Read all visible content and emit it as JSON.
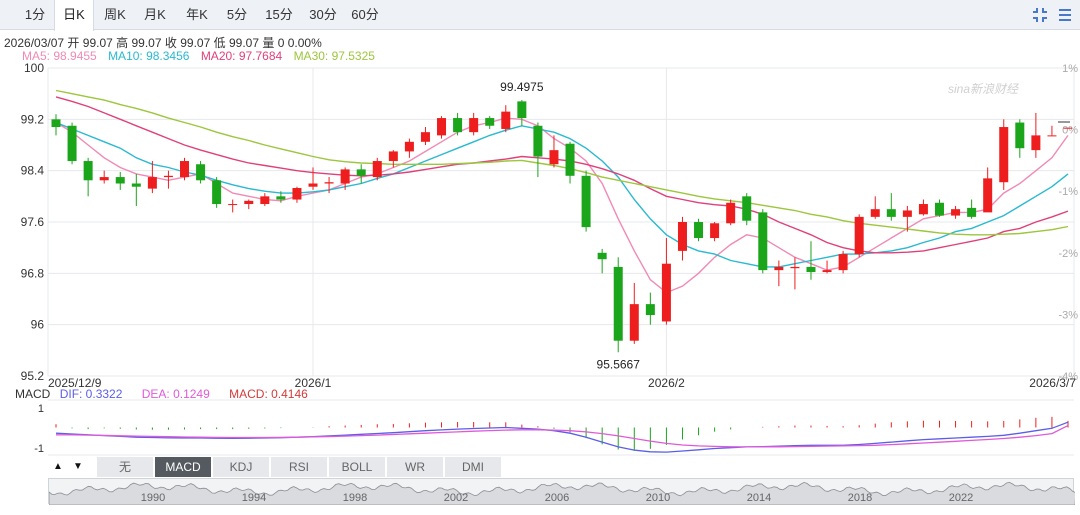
{
  "tabs": [
    {
      "label": "1分",
      "active": false
    },
    {
      "label": "日K",
      "active": true
    },
    {
      "label": "周K",
      "active": false
    },
    {
      "label": "月K",
      "active": false
    },
    {
      "label": "年K",
      "active": false
    },
    {
      "label": "5分",
      "active": false
    },
    {
      "label": "15分",
      "active": false
    },
    {
      "label": "30分",
      "active": false
    },
    {
      "label": "60分",
      "active": false
    }
  ],
  "toolbar_icons": [
    "expand-icon",
    "menu-icon"
  ],
  "info": {
    "date": "2026/03/07",
    "open_label": "开",
    "open": "99.07",
    "high_label": "高",
    "high": "99.07",
    "close_label": "收",
    "close": "99.07",
    "low_label": "低",
    "low": "99.07",
    "volume_label": "量",
    "volume": "0",
    "change": "0.00%"
  },
  "ma": {
    "ma5": {
      "label": "MA5: 98.9455",
      "color": "#f08ab4"
    },
    "ma10": {
      "label": "MA10: 98.3456",
      "color": "#29b9d0"
    },
    "ma20": {
      "label": "MA20: 97.7684",
      "color": "#e0407a"
    },
    "ma30": {
      "label": "MA30: 97.5325",
      "color": "#9cc63c"
    }
  },
  "watermark": "sina新浪财经",
  "macd": {
    "title": "MACD",
    "dif": {
      "label": "DIF: 0.3322",
      "color": "#5b5ee8"
    },
    "dea": {
      "label": "DEA: 0.1249",
      "color": "#e05ad8"
    },
    "macd": {
      "label": "MACD: 0.4146",
      "color": "#d23a3a"
    },
    "ticks": [
      "1",
      "-1"
    ]
  },
  "indicator_tabs": [
    {
      "label": "无",
      "active": false
    },
    {
      "label": "MACD",
      "active": true
    },
    {
      "label": "KDJ",
      "active": false
    },
    {
      "label": "RSI",
      "active": false
    },
    {
      "label": "BOLL",
      "active": false
    },
    {
      "label": "WR",
      "active": false
    },
    {
      "label": "DMI",
      "active": false
    }
  ],
  "navigator_years": [
    "1990",
    "1994",
    "1998",
    "2002",
    "2006",
    "2010",
    "2014",
    "2018",
    "2022"
  ],
  "colors": {
    "up": "#ee1e1e",
    "down": "#1aa51a",
    "grid": "#e6e8ec"
  },
  "chart_data": {
    "type": "candlestick",
    "y_ticks": [
      "100",
      "99.2",
      "98.4",
      "97.6",
      "96.8",
      "96",
      "95.2"
    ],
    "ylim": [
      95.2,
      100
    ],
    "pct_ticks": [
      "1%",
      "0%",
      "-1%",
      "-2%",
      "-3%",
      "-4%"
    ],
    "pct_range": [
      1,
      -4
    ],
    "x_labels": [
      {
        "label": "2025/12/9",
        "index": 0
      },
      {
        "label": "2026/1",
        "index": 16
      },
      {
        "label": "2026/2",
        "index": 38
      },
      {
        "label": "2026/3/7",
        "index": 63
      }
    ],
    "annotations": [
      {
        "label": "99.4975",
        "index": 29,
        "value": 99.4975
      },
      {
        "label": "95.5667",
        "index": 35,
        "value": 95.5667
      }
    ],
    "candles": [
      [
        99.2,
        99.08,
        99.28,
        98.95
      ],
      [
        99.1,
        98.55,
        99.15,
        98.5
      ],
      [
        98.55,
        98.25,
        98.6,
        98.0
      ],
      [
        98.25,
        98.3,
        98.4,
        98.2
      ],
      [
        98.3,
        98.2,
        98.38,
        98.1
      ],
      [
        98.2,
        98.15,
        98.35,
        97.85
      ],
      [
        98.12,
        98.3,
        98.55,
        98.05
      ],
      [
        98.3,
        98.32,
        98.4,
        98.12
      ],
      [
        98.3,
        98.55,
        98.6,
        98.25
      ],
      [
        98.5,
        98.25,
        98.55,
        98.2
      ],
      [
        98.25,
        97.88,
        98.3,
        97.82
      ],
      [
        97.88,
        97.88,
        97.95,
        97.75
      ],
      [
        97.88,
        97.93,
        97.95,
        97.8
      ],
      [
        97.88,
        98.0,
        98.05,
        97.85
      ],
      [
        98.0,
        97.95,
        98.08,
        97.9
      ],
      [
        97.95,
        98.13,
        98.15,
        97.9
      ],
      [
        98.15,
        98.2,
        98.45,
        98.1
      ],
      [
        98.2,
        98.22,
        98.3,
        98.05
      ],
      [
        98.2,
        98.42,
        98.45,
        98.1
      ],
      [
        98.42,
        98.32,
        98.5,
        98.2
      ],
      [
        98.3,
        98.55,
        98.6,
        98.25
      ],
      [
        98.55,
        98.7,
        98.72,
        98.45
      ],
      [
        98.7,
        98.85,
        98.9,
        98.6
      ],
      [
        98.85,
        99.0,
        99.08,
        98.8
      ],
      [
        98.95,
        99.22,
        99.25,
        98.9
      ],
      [
        99.22,
        99.0,
        99.3,
        98.95
      ],
      [
        99.0,
        99.22,
        99.3,
        98.95
      ],
      [
        99.22,
        99.1,
        99.25,
        99.05
      ],
      [
        99.05,
        99.32,
        99.42,
        99.0
      ],
      [
        99.48,
        99.22,
        99.5,
        99.1
      ],
      [
        99.1,
        98.62,
        99.15,
        98.3
      ],
      [
        98.5,
        98.72,
        98.95,
        98.45
      ],
      [
        98.82,
        98.32,
        98.85,
        98.2
      ],
      [
        98.32,
        97.52,
        98.4,
        97.45
      ],
      [
        97.12,
        97.02,
        97.18,
        96.8
      ],
      [
        96.9,
        95.75,
        97.05,
        95.57
      ],
      [
        95.75,
        96.32,
        96.65,
        95.7
      ],
      [
        96.32,
        96.15,
        96.5,
        96.0
      ],
      [
        96.05,
        96.95,
        97.35,
        96.0
      ],
      [
        97.15,
        97.6,
        97.68,
        97.0
      ],
      [
        97.6,
        97.35,
        97.65,
        97.3
      ],
      [
        97.35,
        97.58,
        97.6,
        97.3
      ],
      [
        97.58,
        97.9,
        97.95,
        97.55
      ],
      [
        98.0,
        97.62,
        98.05,
        97.55
      ],
      [
        97.75,
        96.85,
        97.8,
        96.8
      ],
      [
        96.85,
        96.9,
        97.0,
        96.6
      ],
      [
        96.88,
        96.9,
        97.05,
        96.55
      ],
      [
        96.9,
        96.82,
        97.3,
        96.7
      ],
      [
        96.82,
        96.85,
        97.0,
        96.8
      ],
      [
        96.85,
        97.1,
        97.15,
        96.8
      ],
      [
        97.1,
        97.68,
        97.72,
        97.05
      ],
      [
        97.68,
        97.8,
        98.0,
        97.65
      ],
      [
        97.8,
        97.68,
        98.05,
        97.62
      ],
      [
        97.68,
        97.78,
        97.85,
        97.45
      ],
      [
        97.72,
        97.88,
        97.95,
        97.7
      ],
      [
        97.9,
        97.7,
        97.95,
        97.68
      ],
      [
        97.7,
        97.8,
        97.85,
        97.65
      ],
      [
        97.82,
        97.68,
        97.95,
        97.65
      ],
      [
        97.75,
        98.28,
        98.45,
        97.8
      ],
      [
        98.22,
        99.08,
        99.2,
        98.1
      ],
      [
        99.15,
        98.75,
        99.2,
        98.6
      ],
      [
        98.72,
        98.95,
        99.3,
        98.6
      ],
      [
        98.95,
        98.95,
        99.1,
        98.95
      ],
      [
        99.07,
        99.07,
        99.07,
        99.07
      ]
    ],
    "series": [
      {
        "name": "MA5",
        "values": [
          99.15,
          99.0,
          98.8,
          98.6,
          98.45,
          98.35,
          98.3,
          98.25,
          98.3,
          98.35,
          98.2,
          98.05,
          98.0,
          97.95,
          97.93,
          98.0,
          98.05,
          98.1,
          98.2,
          98.3,
          98.35,
          98.45,
          98.55,
          98.7,
          98.85,
          99.0,
          99.1,
          99.15,
          99.22,
          99.2,
          99.1,
          98.9,
          98.75,
          98.55,
          98.2,
          97.65,
          97.15,
          96.7,
          96.5,
          96.6,
          96.8,
          97.05,
          97.25,
          97.4,
          97.35,
          97.2,
          97.05,
          96.95,
          96.85,
          96.9,
          97.05,
          97.2,
          97.35,
          97.5,
          97.65,
          97.7,
          97.75,
          97.75,
          97.8,
          98.05,
          98.2,
          98.4,
          98.6,
          98.95
        ]
      },
      {
        "name": "MA10",
        "values": [
          99.15,
          99.05,
          98.95,
          98.85,
          98.75,
          98.6,
          98.5,
          98.45,
          98.38,
          98.33,
          98.25,
          98.18,
          98.12,
          98.08,
          98.05,
          98.05,
          98.07,
          98.1,
          98.15,
          98.2,
          98.28,
          98.35,
          98.45,
          98.55,
          98.65,
          98.75,
          98.85,
          98.95,
          99.03,
          99.1,
          99.05,
          99.0,
          98.9,
          98.75,
          98.55,
          98.3,
          97.95,
          97.65,
          97.4,
          97.25,
          97.15,
          97.1,
          97.0,
          96.95,
          96.9,
          96.9,
          96.95,
          97.0,
          97.05,
          97.1,
          97.1,
          97.12,
          97.15,
          97.2,
          97.28,
          97.35,
          97.45,
          97.5,
          97.6,
          97.7,
          97.85,
          98.0,
          98.15,
          98.35
        ]
      },
      {
        "name": "MA20",
        "values": [
          99.55,
          99.48,
          99.4,
          99.3,
          99.2,
          99.1,
          99.0,
          98.9,
          98.8,
          98.72,
          98.65,
          98.58,
          98.52,
          98.48,
          98.44,
          98.4,
          98.37,
          98.35,
          98.33,
          98.32,
          98.33,
          98.35,
          98.38,
          98.42,
          98.46,
          98.5,
          98.52,
          98.55,
          98.58,
          98.62,
          98.6,
          98.58,
          98.55,
          98.5,
          98.43,
          98.35,
          98.25,
          98.12,
          98.0,
          97.95,
          97.9,
          97.87,
          97.85,
          97.8,
          97.72,
          97.6,
          97.5,
          97.4,
          97.28,
          97.2,
          97.15,
          97.12,
          97.12,
          97.13,
          97.15,
          97.2,
          97.25,
          97.3,
          97.35,
          97.45,
          97.5,
          97.6,
          97.68,
          97.77
        ]
      },
      {
        "name": "MA30",
        "values": [
          99.65,
          99.6,
          99.55,
          99.5,
          99.43,
          99.37,
          99.3,
          99.22,
          99.15,
          99.08,
          99.0,
          98.93,
          98.87,
          98.8,
          98.74,
          98.68,
          98.62,
          98.57,
          98.54,
          98.52,
          98.51,
          98.5,
          98.5,
          98.5,
          98.5,
          98.51,
          98.52,
          98.53,
          98.55,
          98.56,
          98.52,
          98.48,
          98.43,
          98.37,
          98.3,
          98.25,
          98.2,
          98.15,
          98.1,
          98.05,
          98.0,
          97.96,
          97.93,
          97.9,
          97.86,
          97.82,
          97.78,
          97.72,
          97.68,
          97.62,
          97.58,
          97.55,
          97.52,
          97.49,
          97.46,
          97.43,
          97.41,
          97.4,
          97.4,
          97.41,
          97.42,
          97.45,
          97.48,
          97.53
        ]
      },
      {
        "name": "DIF",
        "values": [
          -0.35,
          -0.4,
          -0.45,
          -0.5,
          -0.55,
          -0.6,
          -0.62,
          -0.64,
          -0.65,
          -0.65,
          -0.66,
          -0.67,
          -0.66,
          -0.65,
          -0.63,
          -0.6,
          -0.57,
          -0.52,
          -0.47,
          -0.42,
          -0.37,
          -0.32,
          -0.26,
          -0.2,
          -0.15,
          -0.1,
          -0.06,
          -0.03,
          0.0,
          -0.05,
          -0.1,
          -0.2,
          -0.35,
          -0.6,
          -0.9,
          -1.2,
          -1.4,
          -1.5,
          -1.52,
          -1.45,
          -1.38,
          -1.3,
          -1.25,
          -1.2,
          -1.18,
          -1.15,
          -1.12,
          -1.1,
          -1.1,
          -1.1,
          -1.05,
          -0.98,
          -0.9,
          -0.82,
          -0.75,
          -0.7,
          -0.65,
          -0.6,
          -0.55,
          -0.48,
          -0.35,
          -0.2,
          -0.05,
          0.33
        ]
      },
      {
        "name": "DEA",
        "values": [
          -0.45,
          -0.46,
          -0.47,
          -0.49,
          -0.51,
          -0.53,
          -0.55,
          -0.57,
          -0.59,
          -0.6,
          -0.61,
          -0.62,
          -0.62,
          -0.62,
          -0.61,
          -0.6,
          -0.58,
          -0.56,
          -0.53,
          -0.5,
          -0.47,
          -0.43,
          -0.39,
          -0.35,
          -0.31,
          -0.27,
          -0.23,
          -0.19,
          -0.16,
          -0.14,
          -0.14,
          -0.16,
          -0.2,
          -0.27,
          -0.38,
          -0.52,
          -0.68,
          -0.84,
          -0.98,
          -1.08,
          -1.14,
          -1.17,
          -1.19,
          -1.2,
          -1.2,
          -1.19,
          -1.18,
          -1.16,
          -1.15,
          -1.14,
          -1.12,
          -1.1,
          -1.06,
          -1.01,
          -0.96,
          -0.91,
          -0.85,
          -0.8,
          -0.74,
          -0.68,
          -0.6,
          -0.5,
          -0.38,
          0.12
        ]
      },
      {
        "name": "MACD",
        "values": [
          0.2,
          -0.05,
          -0.1,
          -0.05,
          -0.08,
          -0.12,
          -0.14,
          -0.14,
          -0.12,
          -0.1,
          -0.1,
          -0.1,
          -0.08,
          -0.06,
          -0.04,
          0.0,
          0.02,
          0.08,
          0.12,
          0.16,
          0.2,
          0.22,
          0.26,
          0.3,
          0.32,
          0.34,
          0.34,
          0.32,
          0.32,
          0.18,
          0.08,
          -0.08,
          -0.3,
          -0.66,
          -1.04,
          -1.36,
          -1.44,
          -1.32,
          -1.08,
          -0.74,
          -0.48,
          -0.26,
          -0.12,
          0.0,
          0.04,
          0.08,
          0.12,
          0.12,
          0.1,
          0.08,
          0.14,
          0.24,
          0.32,
          0.38,
          0.42,
          0.42,
          0.4,
          0.4,
          0.38,
          0.4,
          0.5,
          0.6,
          0.66,
          0.41
        ]
      }
    ]
  }
}
